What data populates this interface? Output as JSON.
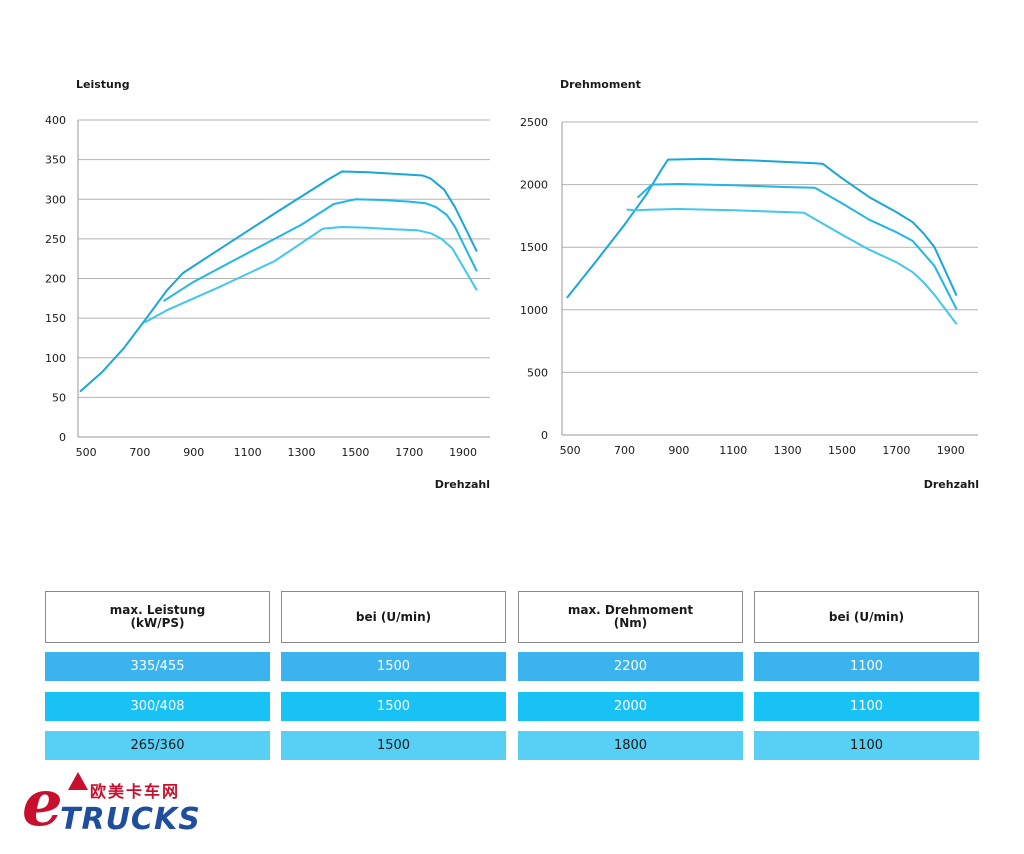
{
  "chart_data": [
    {
      "type": "line",
      "title": "Leistung",
      "xlabel": "Drehzahl",
      "ylabel": "",
      "xlim": [
        470,
        2000
      ],
      "ylim": [
        0,
        400
      ],
      "xticks": [
        500,
        700,
        900,
        1100,
        1300,
        1500,
        1700,
        1900
      ],
      "yticks": [
        0,
        50,
        100,
        150,
        200,
        250,
        300,
        350,
        400
      ],
      "grid": true,
      "legend": "none",
      "series": [
        {
          "color": "#1aa6d9",
          "x": [
            480,
            560,
            640,
            720,
            800,
            860,
            1000,
            1200,
            1400,
            1450,
            1550,
            1650,
            1750,
            1780,
            1830,
            1870,
            1950
          ],
          "y": [
            58,
            82,
            112,
            148,
            185,
            207,
            238,
            282,
            325,
            335,
            334,
            332,
            330,
            326,
            312,
            290,
            235
          ]
        },
        {
          "color": "#22b5e6",
          "x": [
            790,
            900,
            1100,
            1300,
            1420,
            1500,
            1600,
            1700,
            1760,
            1800,
            1840,
            1870,
            1950
          ],
          "y": [
            172,
            196,
            232,
            268,
            294,
            300,
            299,
            297,
            295,
            290,
            280,
            265,
            210
          ]
        },
        {
          "color": "#40c6ef",
          "x": [
            720,
            800,
            1000,
            1200,
            1380,
            1450,
            1550,
            1650,
            1730,
            1780,
            1820,
            1860,
            1950
          ],
          "y": [
            145,
            160,
            190,
            222,
            263,
            265,
            264,
            262,
            261,
            257,
            250,
            238,
            186
          ]
        }
      ]
    },
    {
      "type": "line",
      "title": "Drehmoment",
      "xlabel": "Drehzahl",
      "ylabel": "",
      "xlim": [
        470,
        2000
      ],
      "ylim": [
        0,
        2500
      ],
      "xticks": [
        500,
        700,
        900,
        1100,
        1300,
        1500,
        1700,
        1900
      ],
      "yticks": [
        0,
        500,
        1000,
        1500,
        2000,
        2500
      ],
      "grid": true,
      "legend": "none",
      "series": [
        {
          "color": "#1aa6d9",
          "x": [
            490,
            600,
            700,
            780,
            830,
            860,
            1000,
            1200,
            1400,
            1430,
            1500,
            1600,
            1700,
            1760,
            1800,
            1840,
            1920
          ],
          "y": [
            1100,
            1400,
            1680,
            1920,
            2100,
            2200,
            2205,
            2190,
            2170,
            2165,
            2050,
            1900,
            1780,
            1700,
            1610,
            1500,
            1120
          ]
        },
        {
          "color": "#22b5e6",
          "x": [
            750,
            800,
            900,
            1100,
            1300,
            1400,
            1500,
            1600,
            1700,
            1760,
            1800,
            1840,
            1920
          ],
          "y": [
            1900,
            2000,
            2005,
            1995,
            1980,
            1975,
            1850,
            1720,
            1620,
            1550,
            1450,
            1350,
            1010
          ]
        },
        {
          "color": "#40c6ef",
          "x": [
            710,
            740,
            800,
            900,
            1100,
            1300,
            1360,
            1500,
            1600,
            1700,
            1760,
            1800,
            1840,
            1920
          ],
          "y": [
            1800,
            1795,
            1800,
            1805,
            1795,
            1780,
            1775,
            1600,
            1480,
            1380,
            1300,
            1220,
            1120,
            890
          ]
        }
      ]
    }
  ],
  "table": {
    "headers": [
      "max. Leistung\n(kW/PS)",
      "bei (U/min)",
      "max. Drehmoment\n(Nm)",
      "bei (U/min)"
    ],
    "rows": [
      {
        "color": "#3bb3ee",
        "cells": [
          "335/455",
          "1500",
          "2200",
          "1100"
        ]
      },
      {
        "color": "#19c2f4",
        "cells": [
          "300/408",
          "1500",
          "2000",
          "1100"
        ]
      },
      {
        "color": "#58d0f6",
        "cells": [
          "265/360",
          "1500",
          "1800",
          "1100"
        ]
      }
    ]
  },
  "logo": {
    "letter": "e",
    "chinese": "欧美卡车网",
    "word": "TRUCKS"
  }
}
